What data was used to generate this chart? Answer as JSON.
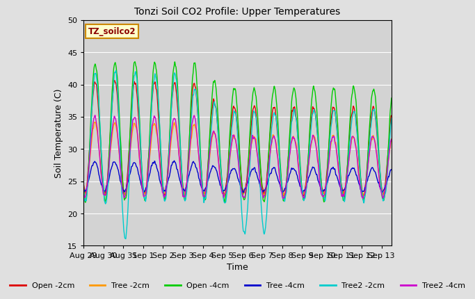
{
  "title": "Tonzi Soil CO2 Profile: Upper Temperatures",
  "ylabel": "Soil Temperature (C)",
  "xlabel": "Time",
  "watermark": "TZ_soilco2",
  "ylim": [
    15,
    50
  ],
  "background_color": "#e0e0e0",
  "plot_bg_color": "#d3d3d3",
  "series": [
    {
      "label": "Open -2cm",
      "color": "#dd0000"
    },
    {
      "label": "Tree -2cm",
      "color": "#ff9900"
    },
    {
      "label": "Open -4cm",
      "color": "#00cc00"
    },
    {
      "label": "Tree -4cm",
      "color": "#0000cc"
    },
    {
      "label": "Tree2 -2cm",
      "color": "#00cccc"
    },
    {
      "label": "Tree2 -4cm",
      "color": "#cc00cc"
    }
  ],
  "x_tick_labels": [
    "Aug 29",
    "Aug 30",
    "Aug 31",
    "Sep 1",
    "Sep 2",
    "Sep 3",
    "Sep 4",
    "Sep 5",
    "Sep 6",
    "Sep 7",
    "Sep 8",
    "Sep 9",
    "Sep 10",
    "Sep 11",
    "Sep 12",
    "Sep 13"
  ],
  "n_days": 15.5
}
